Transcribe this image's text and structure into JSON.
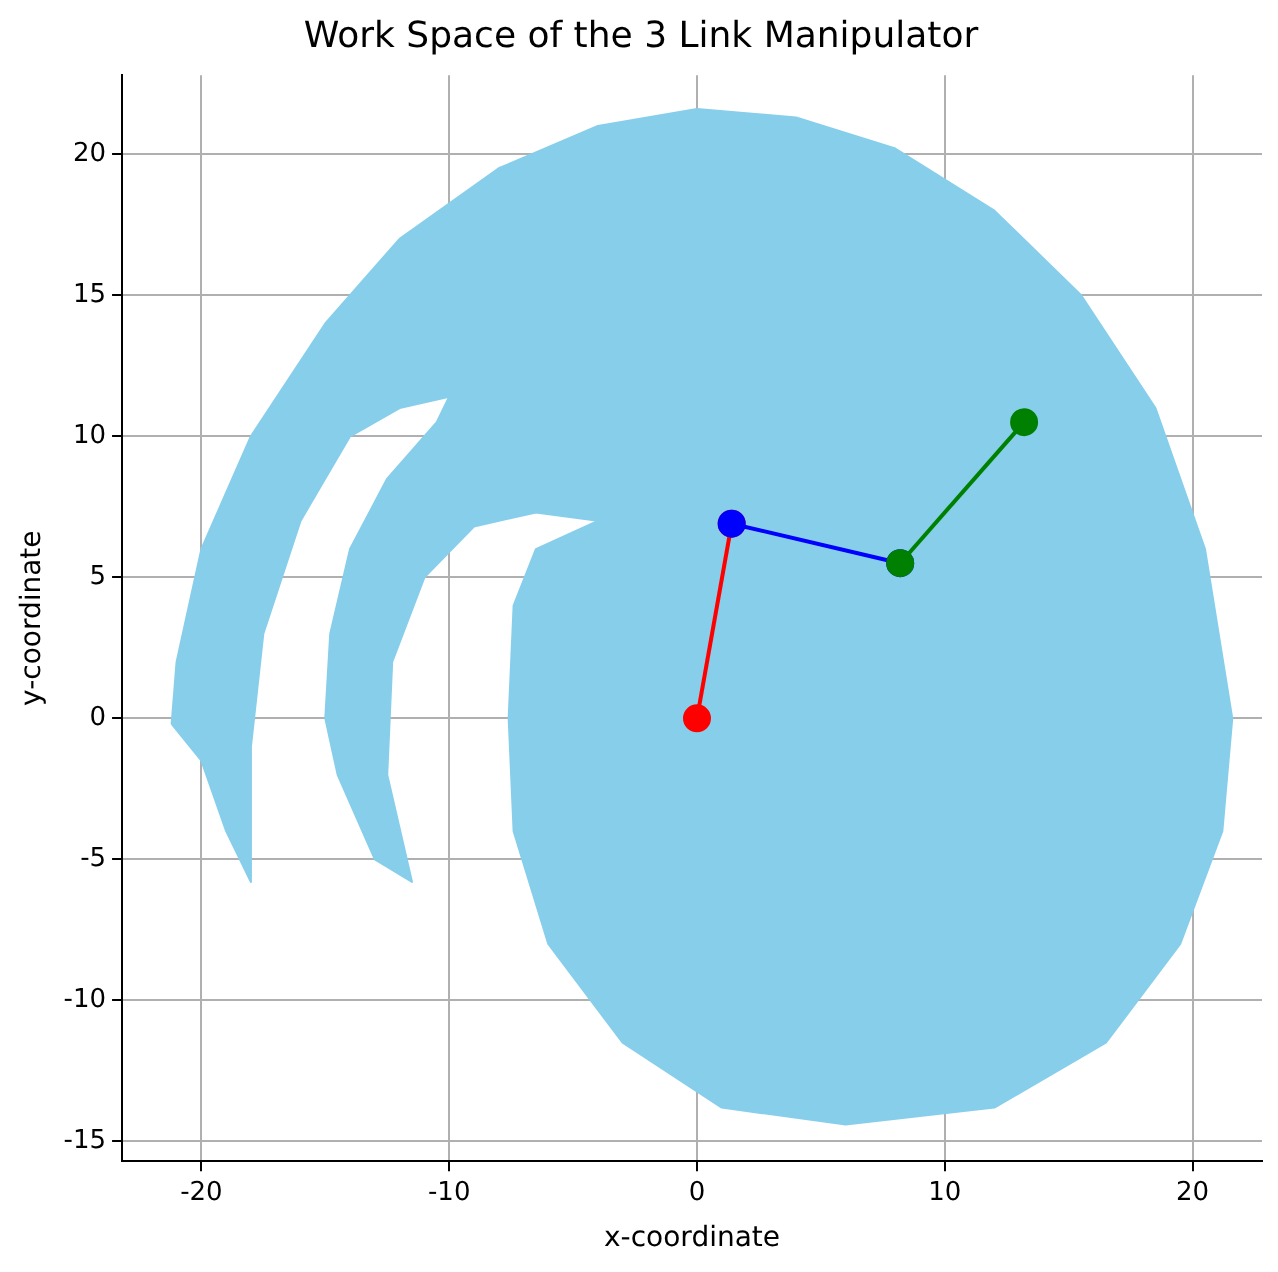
{
  "chart_data": {
    "type": "scatter",
    "title": "Work Space of the 3 Link Manipulator",
    "xlabel": "x-coordinate",
    "ylabel": "y-coordinate",
    "xlim": [
      -23.2,
      22.8
    ],
    "ylim": [
      -15.7,
      22.8
    ],
    "xticks": [
      -20,
      -10,
      0,
      10,
      20
    ],
    "yticks": [
      -15,
      -10,
      -5,
      0,
      5,
      10,
      15,
      20
    ],
    "grid": true,
    "legend": false,
    "series": [
      {
        "type": "area",
        "color": "#87ceeb",
        "marker": "none",
        "x": [
          -21.2,
          -21,
          -20,
          -18,
          -15,
          -12,
          -8,
          -4,
          0,
          4,
          8,
          12,
          15.5,
          18.5,
          20.5,
          21.6,
          21.2,
          19.5,
          16.5,
          12,
          6,
          1,
          -3,
          -6,
          -7.4,
          -7.6,
          -7.4,
          -6.5,
          -4,
          -6.5,
          -9,
          -11,
          -12.3,
          -12.5,
          -11.5,
          -13,
          -14.5,
          -15,
          -14.8,
          -14,
          -12.5,
          -10.5,
          -10,
          -12,
          -14,
          -16,
          -17.5,
          -18,
          -18,
          -19,
          -20,
          -21.2
        ],
        "values": [
          -0.2,
          2,
          6,
          10,
          14,
          17,
          19.5,
          21,
          21.6,
          21.3,
          20.2,
          18,
          15,
          11,
          6,
          0,
          -4,
          -8,
          -11.5,
          -13.8,
          -14.4,
          -13.8,
          -11.5,
          -8,
          -4,
          0,
          4,
          6,
          7,
          7.3,
          6.8,
          5,
          2,
          -2,
          -5.8,
          -5,
          -2,
          0,
          3,
          6,
          8.5,
          10.5,
          11.4,
          11,
          10,
          7,
          3,
          -1,
          -5.8,
          -4,
          -1.5,
          -0.2
        ]
      },
      {
        "type": "line",
        "color": "#ff0000",
        "marker": "circle",
        "x": [
          0,
          1.4
        ],
        "values": [
          0,
          6.9
        ]
      },
      {
        "type": "line",
        "color": "#0000ff",
        "marker": "circle",
        "x": [
          1.4,
          8.2
        ],
        "values": [
          6.9,
          5.5
        ]
      },
      {
        "type": "line",
        "color": "#008000",
        "marker": "circle",
        "x": [
          8.2,
          13.2
        ],
        "values": [
          5.5,
          10.5
        ]
      }
    ]
  }
}
